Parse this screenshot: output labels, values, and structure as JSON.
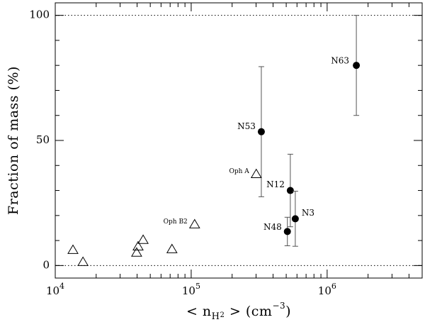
{
  "chart_data": {
    "type": "scatter",
    "y_label": "Fraction of mass (%)",
    "x_label_parts": [
      {
        "text": "< n"
      },
      {
        "text": "H",
        "shift": "sub"
      },
      {
        "text": "2",
        "shift": "subsub"
      },
      {
        "text": " > (cm"
      },
      {
        "text": "−3",
        "shift": "sup"
      },
      {
        "text": ")"
      }
    ],
    "xscale": "log",
    "xlim": [
      10000,
      5000000
    ],
    "ylim": [
      -5,
      105
    ],
    "xticks": [
      {
        "value": 10000,
        "label": "10^4"
      },
      {
        "value": 100000,
        "label": "10^5"
      },
      {
        "value": 1000000,
        "label": "10^6"
      }
    ],
    "yticks": [
      0,
      50,
      100
    ],
    "hlines": [
      0,
      100
    ],
    "series": [
      {
        "marker": "circle",
        "color": "#000000",
        "x": [
          1640000,
          328000,
          536000,
          583000,
          510000
        ],
        "values": [
          80,
          53.5,
          30,
          18.7,
          13.6
        ],
        "errors": [
          20,
          26,
          14.5,
          11,
          5.7
        ],
        "labels": [
          "N63",
          "N53",
          "N12",
          "N3",
          "N48"
        ]
      },
      {
        "marker": "triangle",
        "color": "#000000",
        "x": [
          301000,
          106000,
          13500,
          16000,
          39700,
          40700,
          44300,
          72200
        ],
        "values": [
          36.5,
          16.4,
          6.2,
          1.4,
          5.1,
          7.6,
          10.2,
          6.5
        ],
        "labels": [
          "Oph A",
          "Oph B2",
          null,
          null,
          null,
          null,
          null,
          null
        ]
      }
    ]
  }
}
